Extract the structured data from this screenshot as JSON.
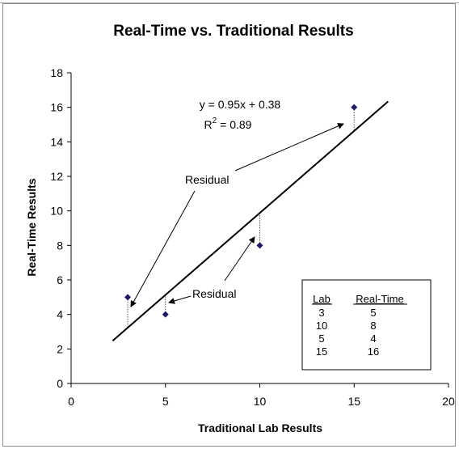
{
  "chart_data": {
    "type": "scatter",
    "title": "Real-Time vs. Traditional Results",
    "xlabel": "Traditional Lab Results",
    "ylabel": "Real-Time Results",
    "xlim": [
      0,
      20
    ],
    "ylim": [
      0,
      18
    ],
    "x_ticks": [
      0,
      5,
      10,
      15,
      20
    ],
    "y_ticks": [
      0,
      2,
      4,
      6,
      8,
      10,
      12,
      14,
      16,
      18
    ],
    "points": [
      {
        "x": 3,
        "y": 5
      },
      {
        "x": 10,
        "y": 8
      },
      {
        "x": 5,
        "y": 4
      },
      {
        "x": 15,
        "y": 16
      }
    ],
    "trendline": {
      "slope": 0.95,
      "intercept": 0.38,
      "x_range": [
        2.2,
        16.8
      ]
    },
    "equation_line1": "y = 0.95x + 0.38",
    "r2_prefix": "R",
    "r2_sup": "2",
    "r2_suffix": " = 0.89",
    "annotations": [
      {
        "text": "Residual"
      },
      {
        "text": "Residual"
      }
    ],
    "table": {
      "headers": [
        "Lab",
        "Real-Time"
      ],
      "rows": [
        [
          "3",
          "5"
        ],
        [
          "10",
          "8"
        ],
        [
          "5",
          "4"
        ],
        [
          "15",
          "16"
        ]
      ]
    },
    "grid": false,
    "marker_color": "#1f1a66",
    "line_color": "#000000"
  }
}
